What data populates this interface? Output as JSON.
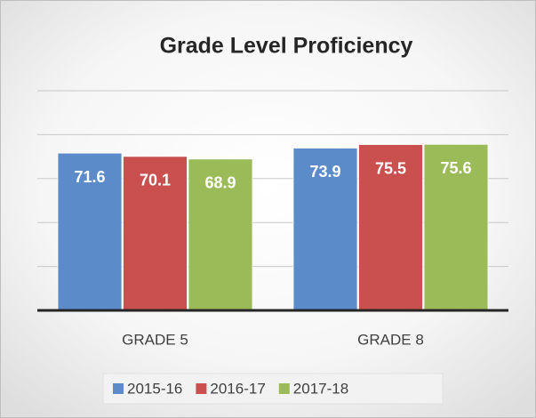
{
  "chart_data": {
    "type": "bar",
    "title": "Grade Level Proficiency",
    "categories": [
      "GRADE 5",
      "GRADE 8"
    ],
    "series": [
      {
        "name": "2015-16",
        "color": "#5b8bc9",
        "values": [
          71.6,
          73.9
        ]
      },
      {
        "name": "2016-17",
        "color": "#c9504e",
        "values": [
          70.1,
          75.5
        ]
      },
      {
        "name": "2017-18",
        "color": "#9bbb59",
        "values": [
          68.9,
          75.6
        ]
      }
    ],
    "ylim": [
      0,
      100
    ],
    "yticks": [
      0,
      20,
      40,
      60,
      80,
      100
    ],
    "grid": true,
    "legend": "bottom"
  }
}
